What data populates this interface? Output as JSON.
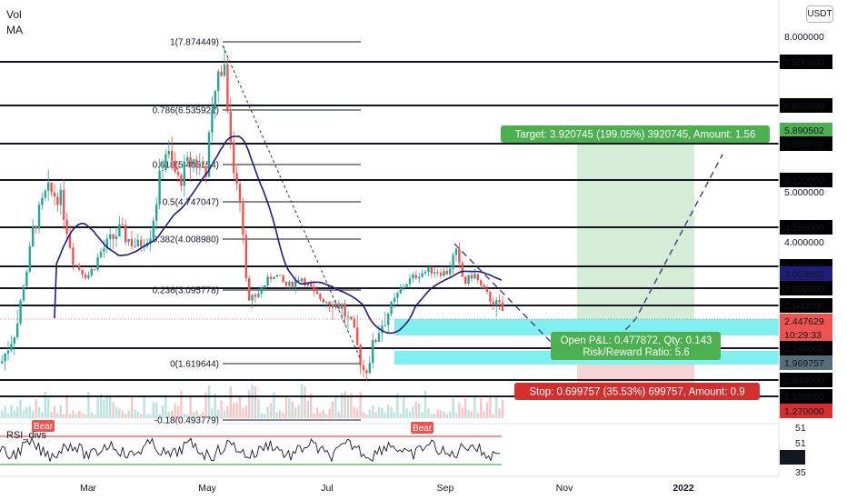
{
  "indicators": {
    "vol": "Vol",
    "ma": "MA",
    "rsi": "RSI_divs"
  },
  "currency": "USDT",
  "chart_data": {
    "type": "line",
    "price_axis_ticks": [
      "8.000000",
      "7.500000",
      "6.650000",
      "5.890502",
      "5.880000",
      "5.220000",
      "5.000000",
      "4.260000",
      "4.000000",
      "3.500000",
      "3.053662",
      "2.860000",
      "2.500000",
      "2.447629",
      "10:29:33",
      "2.140000",
      "1.969757",
      "1.840000",
      "1.580000",
      "1.270000"
    ],
    "x_ticks": [
      "Mar",
      "May",
      "Jul",
      "Sep",
      "Nov",
      "2022"
    ],
    "horizontal_levels": [
      7.5,
      6.65,
      5.88,
      5.22,
      4.26,
      3.5,
      2.86,
      2.5,
      2.14,
      1.84,
      1.58
    ],
    "fib_levels": [
      {
        "label": "1(7.874449)",
        "value": 7.874449
      },
      {
        "label": "0.786(6.535921)",
        "value": 6.535921
      },
      {
        "label": "0.618(5.485154)",
        "value": 5.485154
      },
      {
        "label": "0.5(4.747047)",
        "value": 4.747047
      },
      {
        "label": "0.382(4.008980)",
        "value": 4.00898
      },
      {
        "label": "0.236(3.095778)",
        "value": 3.095778
      },
      {
        "label": "0(1.619644)",
        "value": 1.619644
      },
      {
        "label": "-0.18(0.493779)",
        "value": 0.493779
      }
    ],
    "current_price": "2.447629",
    "countdown": "10:29:33",
    "ma_value": "3.053662",
    "target_price": "5.890502",
    "stop_price": "1.969757",
    "position": {
      "target": "Target: 3.920745 (199.05%) 3920745, Amount: 1.56",
      "pnl": "Open P&L: 0.477872, Qty: 0.143",
      "rr": "Risk/Reward Ratio: 5.6",
      "stop": "Stop: 0.699757 (35.53%) 699757, Amount: 0.9"
    },
    "rsi_axis_ticks": [
      "51",
      "51",
      "41",
      "35"
    ],
    "bear_labels": [
      "Bear",
      "Bear"
    ],
    "colors": {
      "up": "#26a69a",
      "down": "#ef5350",
      "ma": "#1e1e7a",
      "target_zone": "#d5ecd6",
      "stop_zone": "#f7d3d3",
      "entry_zone": "#7ff0ef",
      "target_label": "#4caf50",
      "stop_label": "#d32f2f",
      "rsi_line": "#131722",
      "rsi_upper": "#ef5350",
      "rsi_lower": "#4caf50"
    }
  }
}
